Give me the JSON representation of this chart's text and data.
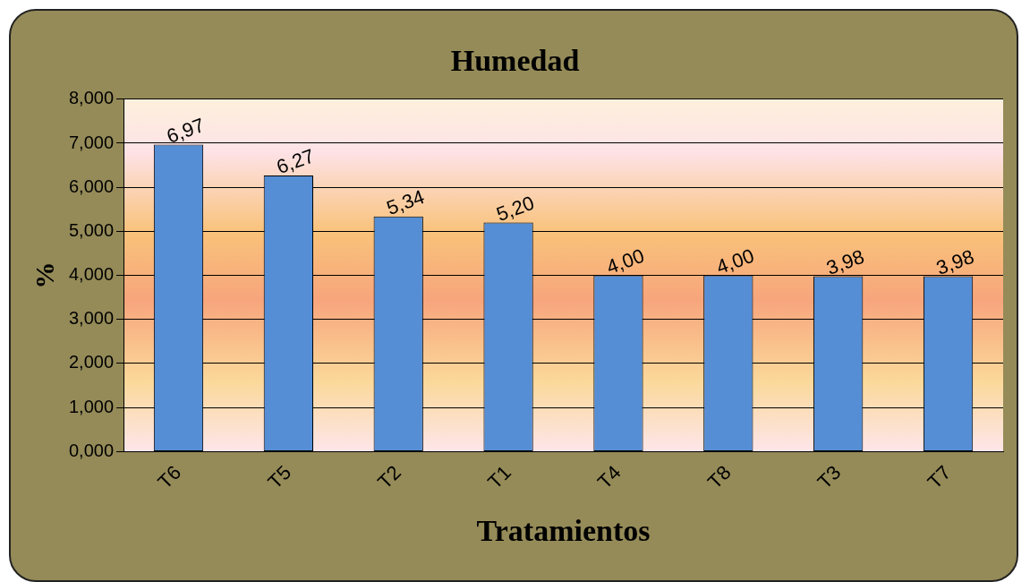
{
  "chart_data": {
    "type": "bar",
    "title": "Humedad",
    "xlabel": "Tratamientos",
    "ylabel": "%",
    "categories": [
      "T6",
      "T5",
      "T2",
      "T1",
      "T4",
      "T8",
      "T3",
      "T7"
    ],
    "values": [
      6.97,
      6.27,
      5.34,
      5.2,
      4.0,
      4.0,
      3.98,
      3.98
    ],
    "value_labels": [
      "6,97",
      "6,27",
      "5,34",
      "5,20",
      "4,00",
      "4,00",
      "3,98",
      "3,98"
    ],
    "color": "#558ed5",
    "ylim": [
      0,
      8
    ],
    "yticks": [
      {
        "value": 0,
        "label": "0,000"
      },
      {
        "value": 1,
        "label": "1,000"
      },
      {
        "value": 2,
        "label": "2,000"
      },
      {
        "value": 3,
        "label": "3,000"
      },
      {
        "value": 4,
        "label": "4,000"
      },
      {
        "value": 5,
        "label": "5,000"
      },
      {
        "value": 6,
        "label": "6,000"
      },
      {
        "value": 7,
        "label": "7,000"
      },
      {
        "value": 8,
        "label": "8,000"
      }
    ],
    "grid": "y",
    "legend": false
  }
}
